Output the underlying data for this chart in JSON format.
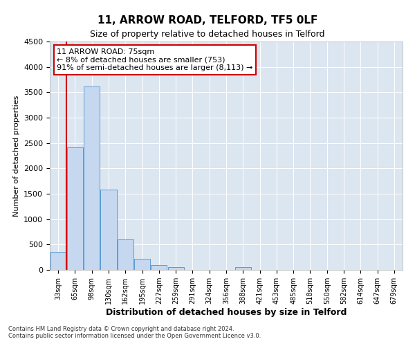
{
  "title": "11, ARROW ROAD, TELFORD, TF5 0LF",
  "subtitle": "Size of property relative to detached houses in Telford",
  "xlabel": "Distribution of detached houses by size in Telford",
  "ylabel": "Number of detached properties",
  "footnote1": "Contains HM Land Registry data © Crown copyright and database right 2024.",
  "footnote2": "Contains public sector information licensed under the Open Government Licence v3.0.",
  "categories": [
    "33sqm",
    "65sqm",
    "98sqm",
    "130sqm",
    "162sqm",
    "195sqm",
    "227sqm",
    "259sqm",
    "291sqm",
    "324sqm",
    "356sqm",
    "388sqm",
    "421sqm",
    "453sqm",
    "485sqm",
    "518sqm",
    "550sqm",
    "582sqm",
    "614sqm",
    "647sqm",
    "679sqm"
  ],
  "values": [
    350,
    2420,
    3620,
    1580,
    600,
    220,
    100,
    60,
    0,
    0,
    0,
    50,
    0,
    0,
    0,
    0,
    0,
    0,
    0,
    0,
    0
  ],
  "bar_color": "#c5d8f0",
  "bar_edge_color": "#5b9bd5",
  "annotation_line1": "11 ARROW ROAD: 75sqm",
  "annotation_line2": "← 8% of detached houses are smaller (753)",
  "annotation_line3": "91% of semi-detached houses are larger (8,113) →",
  "annotation_box_color": "#ffffff",
  "annotation_box_edge": "#cc0000",
  "red_line_color": "#cc0000",
  "ylim": [
    0,
    4500
  ],
  "yticks": [
    0,
    500,
    1000,
    1500,
    2000,
    2500,
    3000,
    3500,
    4000,
    4500
  ],
  "background_color": "#dce6f1",
  "plot_background": "#dce6f1",
  "title_fontsize": 11,
  "subtitle_fontsize": 9,
  "xlabel_fontsize": 9,
  "ylabel_fontsize": 8,
  "tick_fontsize": 8,
  "xtick_fontsize": 7,
  "annot_fontsize": 8
}
